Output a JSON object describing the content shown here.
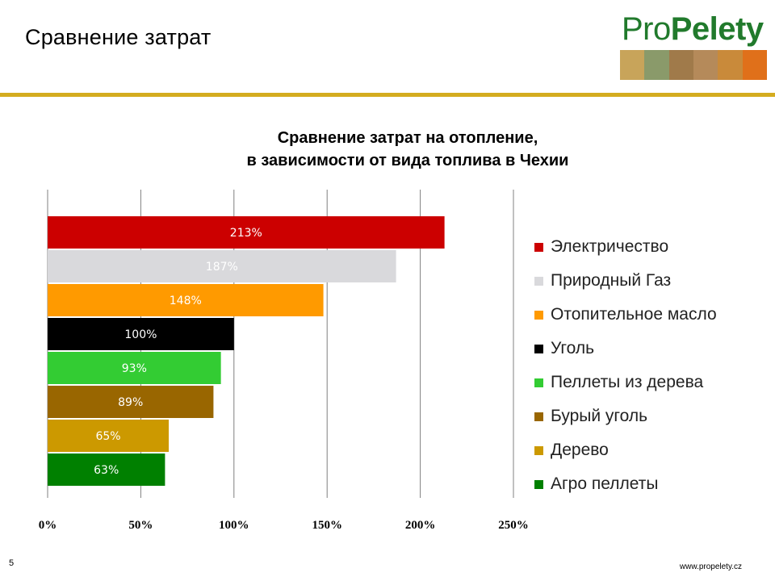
{
  "slide": {
    "title": "Сравнение затрат",
    "page_number": "5",
    "footer_url": "www.propelety.cz",
    "accent_color": "#d4ac1f"
  },
  "logo": {
    "text_regular": "Pro",
    "text_bold": "Pelety",
    "color": "#217a2c"
  },
  "chart_data": {
    "type": "bar",
    "orientation": "horizontal",
    "title_lines": [
      "Сравнение затрат на отопление,",
      "в зависимости от вида топлива в Чехии"
    ],
    "xlim": [
      0,
      250
    ],
    "x_ticks": [
      0,
      50,
      100,
      150,
      200,
      250
    ],
    "x_tick_labels": [
      "0%",
      "50%",
      "100%",
      "150%",
      "200%",
      "250%"
    ],
    "grid": "vertical",
    "legend_position": "right",
    "series": [
      {
        "name": "Электричество",
        "value": 213,
        "label": "213%",
        "color": "#cc0000",
        "label_color": "#ffffff"
      },
      {
        "name": "Природный Газ",
        "value": 187,
        "label": "187%",
        "color": "#d9d9dc",
        "label_color": "#ffffff"
      },
      {
        "name": "Отопительное масло",
        "value": 148,
        "label": "148%",
        "color": "#ff9a00",
        "label_color": "#ffffff"
      },
      {
        "name": "Уголь",
        "value": 100,
        "label": "100%",
        "color": "#000000",
        "label_color": "#ffffff"
      },
      {
        "name": "Пеллеты из дерева",
        "value": 93,
        "label": "93%",
        "color": "#33cc33",
        "label_color": "#ffffff"
      },
      {
        "name": "Бурый уголь",
        "value": 89,
        "label": "89%",
        "color": "#996600",
        "label_color": "#ffffff"
      },
      {
        "name": "Дерево",
        "value": 65,
        "label": "65%",
        "color": "#cc9900",
        "label_color": "#ffffff"
      },
      {
        "name": "Агро пеллеты",
        "value": 63,
        "label": "63%",
        "color": "#008000",
        "label_color": "#ffffff"
      }
    ]
  }
}
